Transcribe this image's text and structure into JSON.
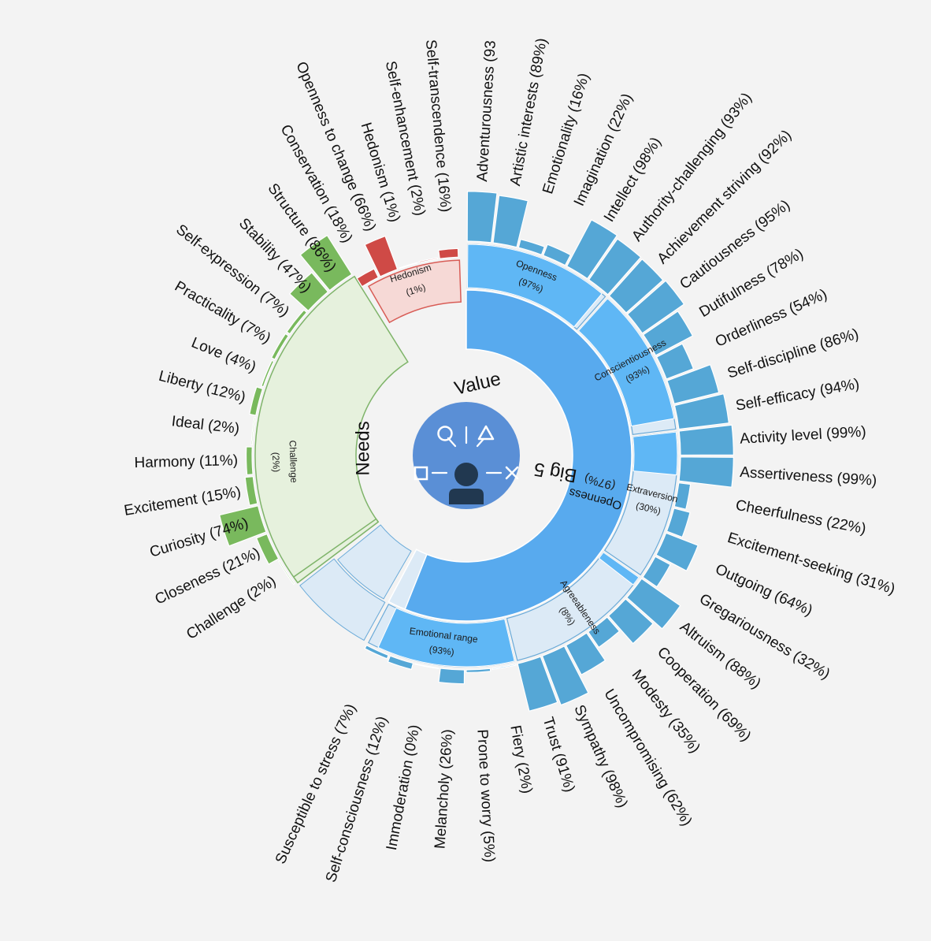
{
  "chart_data": {
    "type": "sunburst",
    "center_icon": "personality-insights-icon",
    "colors": {
      "big5": "#58aaee",
      "big5_light": "#5fb7f5",
      "big5_pale": "#dceaf6",
      "big5_leaf": "#55a7d6",
      "needs": "#79b95d",
      "needs_fill": "#e6f1dd",
      "needs_stroke": "#7fb46a",
      "value": "#cf4a46",
      "value_fill": "#f6d9d6",
      "value_stroke": "#d85c56",
      "icon_bg": "#5a8fd6",
      "icon_fg": "#213850",
      "icon_line": "#ffffff"
    },
    "groups": [
      {
        "name": "Big 5",
        "traits": [
          {
            "name": "Openness",
            "label": "(97%)",
            "value": 97,
            "leaves": [
              {
                "label": "Adventurousness (93",
                "value": 93
              },
              {
                "label": "Artistic interests (89%)",
                "value": 89
              },
              {
                "label": "Emotionality (16%)",
                "value": 16
              },
              {
                "label": "Imagination (22%)",
                "value": 22
              },
              {
                "label": "Intellect (98%)",
                "value": 98
              },
              {
                "label": "Authority-challenging (93%)",
                "value": 93
              }
            ]
          },
          {
            "name": "Conscientiousness",
            "label": "(93%)",
            "value": 93,
            "leaves": [
              {
                "label": "Achievement striving (92%)",
                "value": 92
              },
              {
                "label": "Cautiousness (95%)",
                "value": 95
              },
              {
                "label": "Dutifulness (78%)",
                "value": 78
              },
              {
                "label": "Orderliness (54%)",
                "value": 54
              },
              {
                "label": "Self-discipline (86%)",
                "value": 86
              },
              {
                "label": "Self-efficacy (94%)",
                "value": 94
              }
            ]
          },
          {
            "name": "Extraversion",
            "label": "(30%)",
            "value": 30,
            "leaves": [
              {
                "label": "Activity level (99%)",
                "value": 99
              },
              {
                "label": "Assertiveness (99%)",
                "value": 99
              },
              {
                "label": "Cheerfulness (22%)",
                "value": 22
              },
              {
                "label": "Excitement-seeking (31%)",
                "value": 31
              },
              {
                "label": "Outgoing (64%)",
                "value": 64
              },
              {
                "label": "Gregariousness (32%)",
                "value": 32
              }
            ]
          },
          {
            "name": "Agreeableness",
            "label": "(8%)",
            "value": 8,
            "leaves": [
              {
                "label": "Altruism (88%)",
                "value": 88
              },
              {
                "label": "Cooperation (69%)",
                "value": 69
              },
              {
                "label": "Modesty (35%)",
                "value": 35
              },
              {
                "label": "Uncompromising (62%)",
                "value": 62
              },
              {
                "label": "Sympathy (98%)",
                "value": 98
              },
              {
                "label": "Trust (91%)",
                "value": 91
              }
            ]
          },
          {
            "name": "Emotional range",
            "label": "(93%)",
            "value": 93,
            "leaves": [
              {
                "label": "Fiery (2%)",
                "value": 2
              },
              {
                "label": "Prone to worry (5%)",
                "value": 5
              },
              {
                "label": "Melancholy (26%)",
                "value": 26
              },
              {
                "label": "Immoderation (0%)",
                "value": 0
              },
              {
                "label": "Self-consciousness (12%)",
                "value": 12
              },
              {
                "label": "Susceptible to stress (7%)",
                "value": 7
              }
            ]
          }
        ],
        "center_trait": {
          "name": "Openness",
          "label": "(97%)",
          "value": 97
        }
      },
      {
        "name": "Needs",
        "center_trait": {
          "name": "Challenge",
          "label": "(2%)",
          "value": 2
        },
        "leaves": [
          {
            "label": "Challenge (2%)",
            "value": 2
          },
          {
            "label": "Closeness (21%)",
            "value": 21
          },
          {
            "label": "Curiosity (74%)",
            "value": 74
          },
          {
            "label": "Excitement (15%)",
            "value": 15
          },
          {
            "label": "Harmony (11%)",
            "value": 11
          },
          {
            "label": "Ideal (2%)",
            "value": 2
          },
          {
            "label": "Liberty (12%)",
            "value": 12
          },
          {
            "label": "Love (4%)",
            "value": 4
          },
          {
            "label": "Practicality (7%)",
            "value": 7
          },
          {
            "label": "Self-expression (7%)",
            "value": 7
          },
          {
            "label": "Stability (47%)",
            "value": 47
          },
          {
            "label": "Structure (86%)",
            "value": 86
          }
        ]
      },
      {
        "name": "Value",
        "center_trait": {
          "name": "Hedonism",
          "label": "(1%)",
          "value": 1
        },
        "leaves": [
          {
            "label": "Conservation (18%)",
            "value": 18
          },
          {
            "label": "Openness to change (66%)",
            "value": 66
          },
          {
            "label": "Hedonism (1%)",
            "value": 1
          },
          {
            "label": "Self-enhancement (2%)",
            "value": 2
          },
          {
            "label": "Self-transcendence (16%)",
            "value": 16
          }
        ]
      }
    ]
  }
}
